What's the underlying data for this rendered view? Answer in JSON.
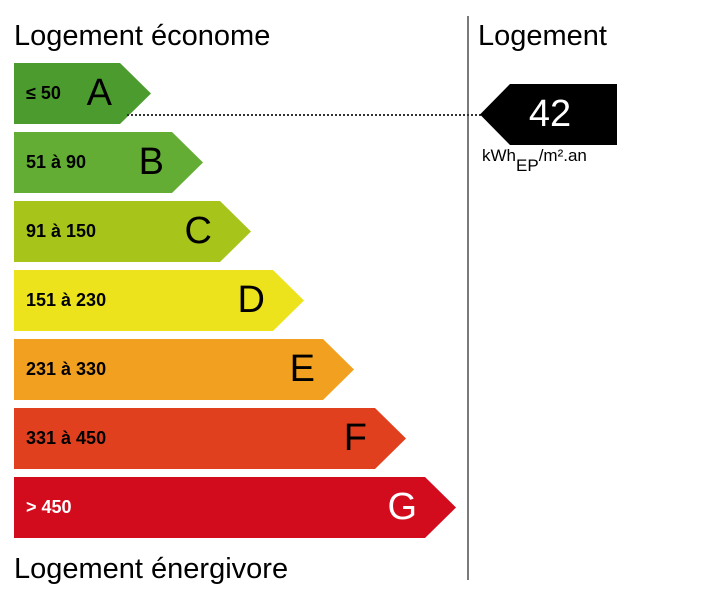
{
  "labels": {
    "top": "Logement économe",
    "bottom": "Logement énergivore",
    "right": "Logement"
  },
  "classes": [
    {
      "letter": "A",
      "range": "≤ 50",
      "color": "#4c9b2f",
      "text_color": "#000000"
    },
    {
      "letter": "B",
      "range": "51 à 90",
      "color": "#63ad34",
      "text_color": "#000000"
    },
    {
      "letter": "C",
      "range": "91 à 150",
      "color": "#a7c41b",
      "text_color": "#000000"
    },
    {
      "letter": "D",
      "range": "151 à 230",
      "color": "#ede31c",
      "text_color": "#000000"
    },
    {
      "letter": "E",
      "range": "231 à 330",
      "color": "#f2a020",
      "text_color": "#000000"
    },
    {
      "letter": "F",
      "range": "331 à 450",
      "color": "#e1401f",
      "text_color": "#000000"
    },
    {
      "letter": "G",
      "range": "> 450",
      "color": "#d20b1d",
      "text_color": "#ffffff"
    }
  ],
  "value": {
    "number": "42",
    "class": "A",
    "unit_main": "kWh",
    "unit_sub": "EP",
    "unit_suffix": "/m².an"
  }
}
